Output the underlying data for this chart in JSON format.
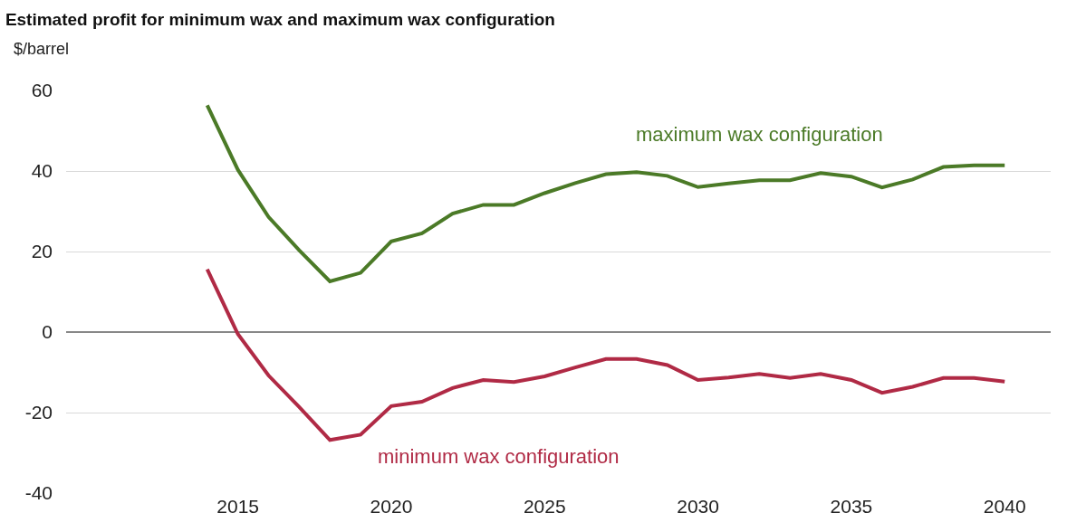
{
  "chart_data": {
    "type": "line",
    "title": "Estimated profit for minimum wax and maximum wax configuration",
    "ylabel": "$/barrel",
    "x": [
      2014,
      2015,
      2016,
      2017,
      2018,
      2019,
      2020,
      2021,
      2022,
      2023,
      2024,
      2025,
      2026,
      2027,
      2028,
      2029,
      2030,
      2031,
      2032,
      2033,
      2034,
      2035,
      2036,
      2037,
      2038,
      2039,
      2040
    ],
    "series": [
      {
        "name": "maximum wax configuration",
        "color": "#4b7a27",
        "values": [
          56.3,
          40.3,
          28.6,
          20.3,
          12.6,
          14.7,
          22.5,
          24.5,
          29.4,
          31.6,
          31.6,
          34.5,
          37,
          39.2,
          39.7,
          38.8,
          36,
          36.9,
          37.7,
          37.7,
          39.5,
          38.6,
          35.9,
          37.9,
          41,
          41.4,
          41.4
        ]
      },
      {
        "name": "minimum wax configuration",
        "color": "#b02a45",
        "values": [
          15.6,
          -0.5,
          -10.8,
          -18.6,
          -26.8,
          -25.5,
          -18.4,
          -17.3,
          -13.9,
          -11.9,
          -12.4,
          -11,
          -8.8,
          -6.7,
          -6.7,
          -8.2,
          -11.9,
          -11.3,
          -10.4,
          -11.4,
          -10.4,
          -11.9,
          -15.1,
          -13.6,
          -11.4,
          -11.4,
          -12.3
        ]
      }
    ],
    "xlim": [
      2009.4,
      2041.5
    ],
    "xticks": [
      2015,
      2020,
      2025,
      2030,
      2035,
      2040
    ],
    "ylim": [
      -40,
      60
    ],
    "yticks": [
      -40,
      -20,
      0,
      20,
      40,
      60
    ],
    "grid": "y",
    "legend": false,
    "marker": "none",
    "line_style": "solid"
  }
}
